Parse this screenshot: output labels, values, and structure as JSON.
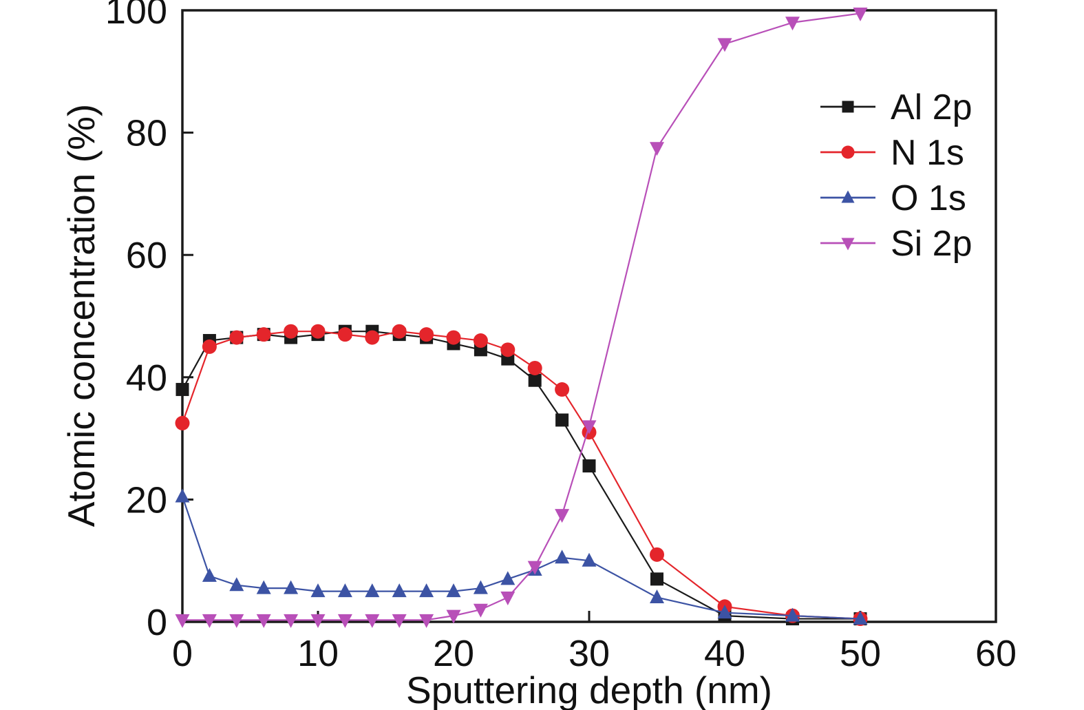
{
  "chart_data": {
    "type": "line",
    "title": "",
    "xlabel": "Sputtering depth (nm)",
    "ylabel": "Atomic concentration (%)",
    "xlim": [
      0,
      60
    ],
    "ylim": [
      0,
      100
    ],
    "x_ticks": [
      0,
      10,
      20,
      30,
      40,
      50,
      60
    ],
    "y_ticks": [
      0,
      20,
      40,
      60,
      80,
      100
    ],
    "grid": false,
    "legend_position": "inside top right",
    "x": [
      0,
      2,
      4,
      6,
      8,
      10,
      12,
      14,
      16,
      18,
      20,
      22,
      24,
      26,
      28,
      30,
      35,
      40,
      45,
      50
    ],
    "series": [
      {
        "name": "Al 2p",
        "color": "#1a1a1a",
        "marker": "square",
        "values": [
          38,
          46,
          46.5,
          47,
          46.5,
          47,
          47.5,
          47.5,
          47,
          46.5,
          45.5,
          44.5,
          43,
          39.5,
          33,
          25.5,
          7,
          1,
          0.5,
          0.5
        ]
      },
      {
        "name": "N 1s",
        "color": "#e4252b",
        "marker": "circle",
        "values": [
          32.5,
          45,
          46.5,
          47,
          47.5,
          47.5,
          47,
          46.5,
          47.5,
          47,
          46.5,
          46,
          44.5,
          41.5,
          38,
          31,
          11,
          2.5,
          1,
          0.5
        ]
      },
      {
        "name": "O 1s",
        "color": "#3c53a4",
        "marker": "triangle-up",
        "values": [
          20.5,
          7.5,
          6,
          5.5,
          5.5,
          5,
          5,
          5,
          5,
          5,
          5,
          5.5,
          7,
          8.5,
          10.5,
          10,
          4,
          1.5,
          1,
          0.5
        ]
      },
      {
        "name": "Si 2p",
        "color": "#b84fb8",
        "marker": "triangle-down",
        "values": [
          0.3,
          0.3,
          0.3,
          0.3,
          0.3,
          0.3,
          0.3,
          0.3,
          0.3,
          0.3,
          1,
          2,
          4,
          9,
          17.5,
          32,
          77.5,
          94.5,
          98,
          99.5
        ]
      }
    ]
  }
}
